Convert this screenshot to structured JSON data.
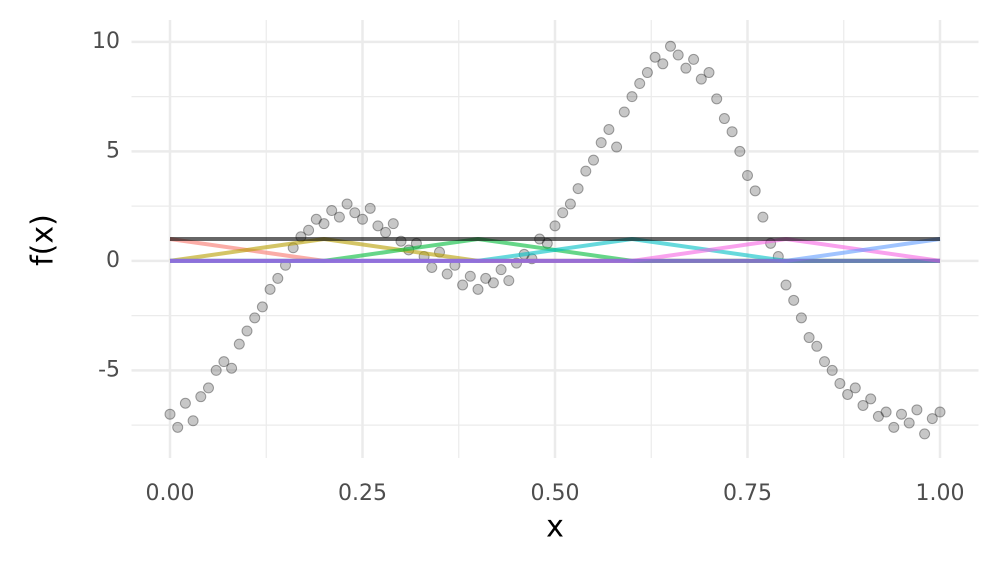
{
  "chart_data": {
    "type": "scatter",
    "x_label": "x",
    "y_label": "f(x)",
    "xlim": [
      -0.05,
      1.05
    ],
    "ylim": [
      -9,
      11
    ],
    "xticks": [
      {
        "value": 0,
        "label": "0.00"
      },
      {
        "value": 0.25,
        "label": "0.25"
      },
      {
        "value": 0.5,
        "label": "0.50"
      },
      {
        "value": 0.75,
        "label": "0.75"
      },
      {
        "value": 1,
        "label": "1.00"
      }
    ],
    "xminor": [
      0.125,
      0.375,
      0.625,
      0.875
    ],
    "yticks": [
      -5,
      0,
      5,
      10
    ],
    "yminor": [
      -7.5,
      -2.5,
      2.5,
      7.5
    ],
    "grid": true,
    "series": [
      {
        "type": "scatter",
        "color": "#000000",
        "x": [
          0,
          0.01,
          0.02,
          0.03,
          0.04,
          0.05,
          0.06,
          0.07,
          0.08,
          0.09,
          0.1,
          0.11,
          0.12,
          0.13,
          0.14,
          0.15,
          0.16,
          0.17,
          0.18,
          0.19,
          0.2,
          0.21,
          0.22,
          0.23,
          0.24,
          0.25,
          0.26,
          0.27,
          0.28,
          0.29,
          0.3,
          0.31,
          0.32,
          0.33,
          0.34,
          0.35,
          0.36,
          0.37,
          0.38,
          0.39,
          0.4,
          0.41,
          0.42,
          0.43,
          0.44,
          0.45,
          0.46,
          0.47,
          0.48,
          0.49,
          0.5,
          0.51,
          0.52,
          0.53,
          0.54,
          0.55,
          0.56,
          0.57,
          0.58,
          0.59,
          0.6,
          0.61,
          0.62,
          0.63,
          0.64,
          0.65,
          0.66,
          0.67,
          0.68,
          0.69,
          0.7,
          0.71,
          0.72,
          0.73,
          0.74,
          0.75,
          0.76,
          0.77,
          0.78,
          0.79,
          0.8,
          0.81,
          0.82,
          0.83,
          0.84,
          0.85,
          0.86,
          0.87,
          0.88,
          0.89,
          0.9,
          0.91,
          0.92,
          0.93,
          0.94,
          0.95,
          0.96,
          0.97,
          0.98,
          0.99,
          1
        ],
        "values": [
          -7.0,
          -7.6,
          -6.5,
          -7.3,
          -6.2,
          -5.8,
          -5.0,
          -4.6,
          -4.9,
          -3.8,
          -3.2,
          -2.6,
          -2.1,
          -1.3,
          -0.8,
          -0.2,
          0.6,
          1.1,
          1.4,
          1.9,
          1.7,
          2.3,
          2.0,
          2.6,
          2.2,
          1.9,
          2.4,
          1.6,
          1.3,
          1.7,
          0.9,
          0.5,
          0.8,
          0.2,
          -0.3,
          0.4,
          -0.6,
          -0.2,
          -1.1,
          -0.7,
          -1.3,
          -0.8,
          -1.0,
          -0.4,
          -0.9,
          -0.1,
          0.3,
          0.1,
          1.0,
          0.8,
          1.6,
          2.2,
          2.6,
          3.3,
          4.1,
          4.6,
          5.4,
          6.0,
          5.2,
          6.8,
          7.5,
          8.1,
          8.6,
          9.3,
          9.0,
          9.8,
          9.4,
          8.8,
          9.2,
          8.3,
          8.6,
          7.4,
          6.5,
          5.9,
          5.0,
          3.9,
          3.2,
          2.0,
          0.8,
          0.2,
          -1.1,
          -1.8,
          -2.6,
          -3.5,
          -3.9,
          -4.6,
          -5.0,
          -5.6,
          -6.1,
          -5.8,
          -6.6,
          -6.3,
          -7.1,
          -6.9,
          -7.6,
          -7.0,
          -7.4,
          -6.8,
          -7.9,
          -7.2,
          -6.9
        ]
      },
      {
        "type": "line",
        "color": "#F8766D",
        "x": [
          0,
          0.1,
          0.2,
          0.3,
          0.4,
          0.5,
          0.6,
          0.7,
          0.8,
          0.9,
          1
        ],
        "values": [
          1,
          0.5,
          0,
          0,
          0,
          0,
          0,
          0,
          0,
          0,
          0
        ]
      },
      {
        "type": "line",
        "color": "#B79F00",
        "x": [
          0,
          0.1,
          0.2,
          0.3,
          0.4,
          0.5,
          0.6,
          0.7,
          0.8,
          0.9,
          1
        ],
        "values": [
          0,
          0.5,
          1,
          0.5,
          0,
          0,
          0,
          0,
          0,
          0,
          0
        ]
      },
      {
        "type": "line",
        "color": "#00BA38",
        "x": [
          0,
          0.1,
          0.2,
          0.3,
          0.4,
          0.5,
          0.6,
          0.7,
          0.8,
          0.9,
          1
        ],
        "values": [
          0,
          0,
          0,
          0.5,
          1,
          0.5,
          0,
          0,
          0,
          0,
          0
        ]
      },
      {
        "type": "line",
        "color": "#00BFC4",
        "x": [
          0,
          0.1,
          0.2,
          0.3,
          0.4,
          0.5,
          0.6,
          0.7,
          0.8,
          0.9,
          1
        ],
        "values": [
          0,
          0,
          0,
          0,
          0,
          0.5,
          1,
          0.5,
          0,
          0,
          0
        ]
      },
      {
        "type": "line",
        "color": "#F564E3",
        "x": [
          0,
          0.1,
          0.2,
          0.3,
          0.4,
          0.5,
          0.6,
          0.7,
          0.8,
          0.9,
          1
        ],
        "values": [
          0,
          0,
          0,
          0,
          0,
          0,
          0,
          0.5,
          1,
          0.5,
          0
        ]
      },
      {
        "type": "line",
        "color": "#619CFF",
        "x": [
          0,
          0.1,
          0.2,
          0.3,
          0.4,
          0.5,
          0.6,
          0.7,
          0.8,
          0.9,
          1
        ],
        "values": [
          0,
          0,
          0,
          0,
          0,
          0,
          0,
          0,
          0,
          0.5,
          1
        ]
      },
      {
        "type": "line",
        "color": "#9B59D0",
        "x": [
          0,
          1
        ],
        "values": [
          0,
          0
        ]
      },
      {
        "type": "line",
        "color": "#000000",
        "x": [
          0,
          1
        ],
        "values": [
          1,
          1
        ]
      }
    ]
  }
}
